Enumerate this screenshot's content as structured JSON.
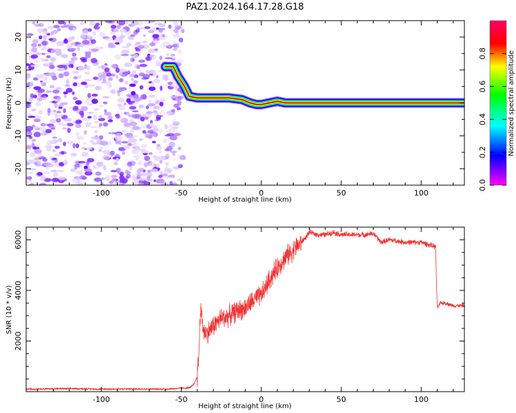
{
  "title": "PAZ1.2024.164.17.28.G18",
  "chart_data": [
    {
      "type": "heatmap",
      "xlabel": "Height of straight line (km)",
      "ylabel": "Frequency (Hz)",
      "xlim": [
        -147,
        127
      ],
      "ylim": [
        -25,
        25
      ],
      "x_ticks": [
        -100,
        -50,
        0,
        50,
        100
      ],
      "y_ticks": [
        -20,
        -10,
        0,
        10,
        20
      ],
      "colorbar": {
        "label": "Normalized spectral amplitude",
        "range": [
          0,
          1
        ],
        "ticks": [
          0.0,
          0.2,
          0.4,
          0.6,
          0.8
        ],
        "colors": [
          "#ff00ff",
          "#0000ff",
          "#00ffff",
          "#00ff00",
          "#ffff00",
          "#ff0000",
          "#ff0066"
        ]
      },
      "noise_region_x": [
        -147,
        -53
      ],
      "ridge": {
        "x": [
          -60,
          -55,
          -52,
          -48,
          -45,
          -40,
          -30,
          -20,
          -12,
          -7,
          -3,
          0,
          5,
          10,
          15,
          20,
          30,
          50,
          80,
          100,
          127
        ],
        "frequency": [
          11,
          11,
          8,
          5,
          2,
          1.5,
          1.5,
          1.5,
          1,
          0,
          -0.5,
          -0.5,
          0,
          0.5,
          0,
          0,
          0,
          0,
          0,
          0,
          0
        ]
      }
    },
    {
      "type": "line",
      "xlabel": "Height of straight line (km)",
      "ylabel": "SNR (10 * v/v)",
      "xlim": [
        -147,
        127
      ],
      "ylim": [
        0,
        6500
      ],
      "x_ticks": [
        -100,
        -50,
        0,
        50,
        100
      ],
      "y_ticks": [
        2000,
        4000,
        6000
      ],
      "line_color": "#ee3333",
      "series": [
        {
          "x": [
            -147,
            -120,
            -100,
            -80,
            -60,
            -45,
            -42,
            -40,
            -39,
            -38,
            -36,
            -34,
            -30,
            -25,
            -20,
            -15,
            -10,
            -5,
            0,
            5,
            10,
            15,
            20,
            25,
            28,
            30,
            35,
            40,
            45,
            50,
            60,
            65,
            70,
            75,
            80,
            90,
            100,
            105,
            108,
            109,
            110,
            112,
            115,
            120,
            127
          ],
          "y": [
            100,
            120,
            100,
            110,
            100,
            150,
            300,
            600,
            1500,
            3300,
            2400,
            2300,
            2600,
            2900,
            3000,
            3200,
            3300,
            3600,
            3800,
            4400,
            4900,
            5300,
            5600,
            5900,
            6100,
            6300,
            6200,
            6200,
            6300,
            6200,
            6200,
            6200,
            6250,
            5900,
            6000,
            5900,
            5900,
            5800,
            5750,
            5700,
            3300,
            3500,
            3500,
            3400,
            3400
          ]
        }
      ]
    }
  ]
}
